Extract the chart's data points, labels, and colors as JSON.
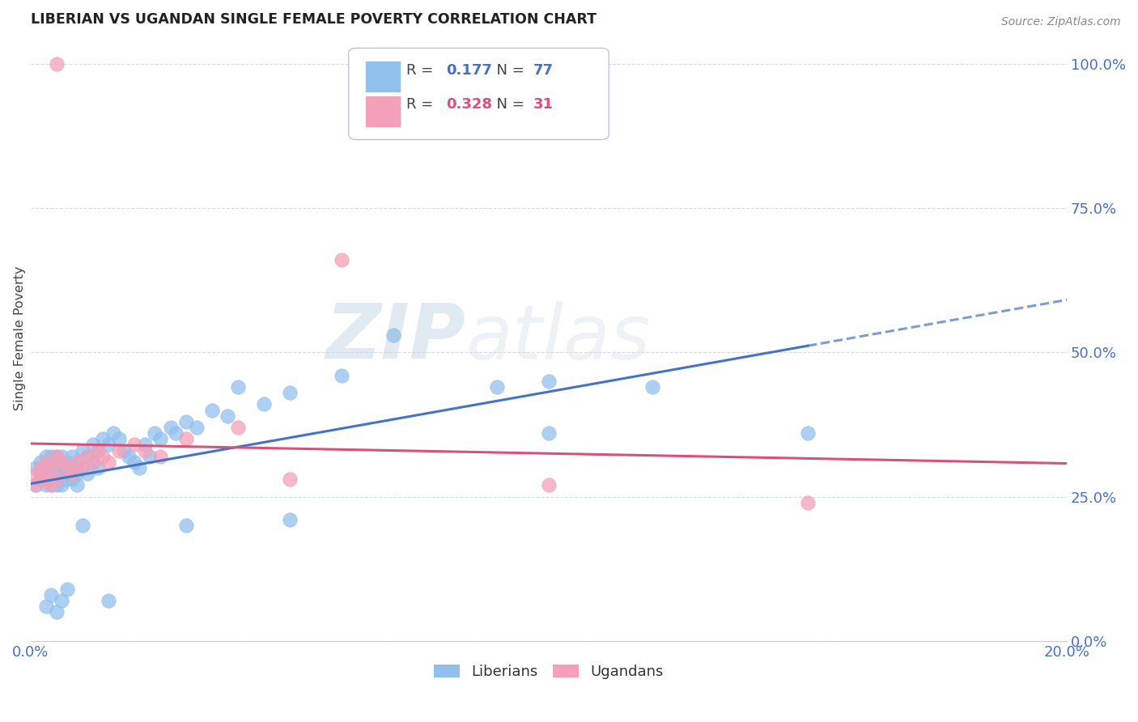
{
  "title": "LIBERIAN VS UGANDAN SINGLE FEMALE POVERTY CORRELATION CHART",
  "source": "Source: ZipAtlas.com",
  "ylabel": "Single Female Poverty",
  "ytick_labels": [
    "0.0%",
    "25.0%",
    "50.0%",
    "75.0%",
    "100.0%"
  ],
  "ytick_values": [
    0.0,
    0.25,
    0.5,
    0.75,
    1.0
  ],
  "xlim": [
    0.0,
    0.2
  ],
  "ylim": [
    0.0,
    1.05
  ],
  "liberian_R": 0.177,
  "liberian_N": 77,
  "ugandan_R": 0.328,
  "ugandan_N": 31,
  "liberian_color": "#92c0ed",
  "ugandan_color": "#f4a0b8",
  "regression_liberian_color": "#4472c4",
  "regression_ugandan_color": "#d9507a",
  "liberian_points_x": [
    0.001,
    0.001,
    0.002,
    0.002,
    0.002,
    0.003,
    0.003,
    0.003,
    0.003,
    0.004,
    0.004,
    0.004,
    0.004,
    0.005,
    0.005,
    0.005,
    0.005,
    0.005,
    0.006,
    0.006,
    0.006,
    0.006,
    0.006,
    0.007,
    0.007,
    0.007,
    0.008,
    0.008,
    0.008,
    0.009,
    0.009,
    0.009,
    0.01,
    0.01,
    0.011,
    0.011,
    0.012,
    0.012,
    0.013,
    0.013,
    0.014,
    0.015,
    0.016,
    0.017,
    0.018,
    0.019,
    0.02,
    0.021,
    0.022,
    0.023,
    0.024,
    0.025,
    0.027,
    0.028,
    0.03,
    0.032,
    0.035,
    0.038,
    0.04,
    0.045,
    0.05,
    0.06,
    0.07,
    0.09,
    0.1,
    0.003,
    0.004,
    0.005,
    0.006,
    0.007,
    0.01,
    0.015,
    0.03,
    0.05,
    0.1,
    0.12,
    0.15
  ],
  "liberian_points_y": [
    0.3,
    0.27,
    0.29,
    0.31,
    0.28,
    0.3,
    0.28,
    0.32,
    0.27,
    0.31,
    0.29,
    0.27,
    0.32,
    0.3,
    0.28,
    0.32,
    0.27,
    0.29,
    0.31,
    0.29,
    0.27,
    0.32,
    0.3,
    0.29,
    0.31,
    0.28,
    0.3,
    0.32,
    0.28,
    0.31,
    0.29,
    0.27,
    0.33,
    0.3,
    0.32,
    0.29,
    0.34,
    0.31,
    0.33,
    0.3,
    0.35,
    0.34,
    0.36,
    0.35,
    0.33,
    0.32,
    0.31,
    0.3,
    0.34,
    0.32,
    0.36,
    0.35,
    0.37,
    0.36,
    0.38,
    0.37,
    0.4,
    0.39,
    0.44,
    0.41,
    0.43,
    0.46,
    0.53,
    0.44,
    0.45,
    0.06,
    0.08,
    0.05,
    0.07,
    0.09,
    0.2,
    0.07,
    0.2,
    0.21,
    0.36,
    0.44,
    0.36
  ],
  "ugandan_points_x": [
    0.001,
    0.001,
    0.002,
    0.002,
    0.003,
    0.003,
    0.004,
    0.004,
    0.005,
    0.005,
    0.006,
    0.007,
    0.008,
    0.009,
    0.01,
    0.011,
    0.012,
    0.013,
    0.014,
    0.015,
    0.017,
    0.02,
    0.022,
    0.025,
    0.03,
    0.04,
    0.05,
    0.06,
    0.1,
    0.15,
    0.005
  ],
  "ugandan_points_y": [
    0.29,
    0.27,
    0.3,
    0.28,
    0.31,
    0.28,
    0.3,
    0.27,
    0.32,
    0.28,
    0.31,
    0.3,
    0.29,
    0.31,
    0.3,
    0.32,
    0.31,
    0.33,
    0.32,
    0.31,
    0.33,
    0.34,
    0.33,
    0.32,
    0.35,
    0.37,
    0.28,
    0.66,
    0.27,
    0.24,
    1.0
  ],
  "background_color": "#ffffff",
  "grid_color": "#d0dde8",
  "watermark_zip": "ZIP",
  "watermark_atlas": "atlas",
  "legend_R_color": "#333333",
  "legend_N_color": "#2b6cb0"
}
